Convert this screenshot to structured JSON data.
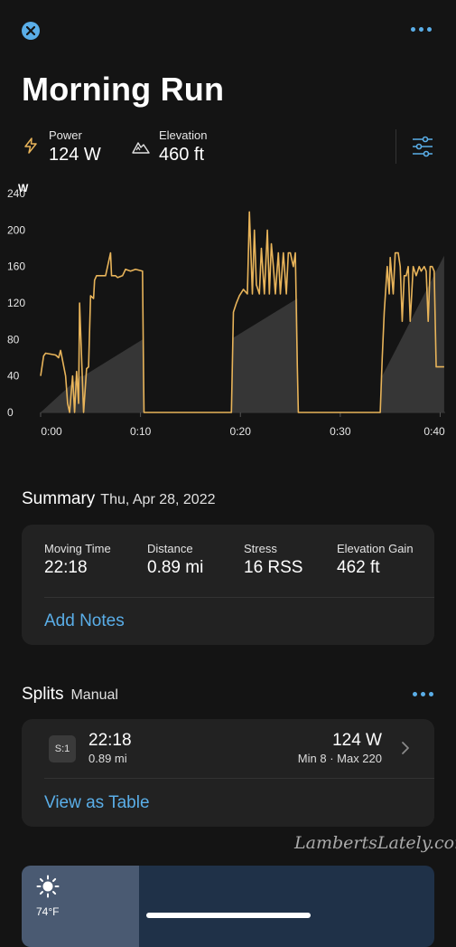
{
  "header": {
    "title": "Morning Run",
    "close_icon": "close-icon",
    "more_icon": "more-icon"
  },
  "metrics": {
    "power": {
      "label": "Power",
      "value": "124 W",
      "icon": "lightning-icon"
    },
    "elevation": {
      "label": "Elevation",
      "value": "460 ft",
      "icon": "mountain-icon"
    },
    "settings_icon": "sliders-icon"
  },
  "chart_data": {
    "type": "line",
    "ylabel": "W",
    "yticks": [
      "240",
      "200",
      "160",
      "120",
      "80",
      "40",
      "0"
    ],
    "ylim": [
      0,
      250
    ],
    "xticks": [
      "0:00",
      "0:10",
      "0:20",
      "0:30",
      "0:40"
    ],
    "xlim": [
      0,
      40.5
    ],
    "series": [
      {
        "color": "#e8b45a",
        "x": [
          0,
          0.3,
          0.5,
          1.5,
          1.8,
          2.0,
          2.5,
          2.7,
          2.9,
          3.2,
          3.4,
          3.6,
          3.8,
          3.9,
          4.1,
          4.3,
          4.6,
          4.8,
          5.0,
          5.3,
          5.4,
          5.6,
          6.0,
          6.5,
          7.0,
          7.1,
          7.3,
          7.5,
          7.7,
          8.2,
          8.5,
          9.0,
          9.5,
          10.2,
          10.3,
          10.35,
          19.1,
          19.3,
          19.6,
          19.9,
          20.3,
          20.7,
          20.9,
          21.2,
          21.4,
          21.6,
          21.9,
          22.1,
          22.4,
          22.7,
          22.9,
          23.1,
          23.3,
          23.5,
          23.8,
          24.0,
          24.3,
          24.6,
          24.8,
          25.0,
          25.3,
          25.5,
          25.7,
          25.8,
          34.0,
          34.2,
          34.4,
          34.7,
          34.9,
          35.0,
          35.3,
          35.5,
          35.8,
          36.0,
          36.2,
          36.4,
          36.6,
          36.8,
          37.0,
          37.3,
          37.6,
          37.9,
          38.1,
          38.4,
          38.6,
          38.8,
          39.0,
          39.2,
          39.4,
          39.6,
          39.8,
          40.1,
          40.4
        ],
        "y": [
          40,
          62,
          65,
          63,
          60,
          68,
          40,
          10,
          0,
          40,
          0,
          45,
          10,
          120,
          60,
          0,
          48,
          50,
          128,
          125,
          145,
          150,
          150,
          150,
          175,
          150,
          150,
          150,
          148,
          150,
          157,
          155,
          157,
          155,
          45,
          0,
          0,
          110,
          120,
          128,
          135,
          130,
          220,
          130,
          200,
          140,
          130,
          180,
          130,
          200,
          130,
          185,
          160,
          130,
          175,
          130,
          175,
          130,
          175,
          175,
          160,
          175,
          50,
          0,
          0,
          60,
          110,
          160,
          130,
          170,
          130,
          175,
          175,
          160,
          100,
          150,
          150,
          160,
          100,
          160,
          150,
          160,
          155,
          160,
          155,
          100,
          160,
          160,
          155,
          50,
          50,
          50,
          50
        ]
      },
      {
        "name": "Elevation",
        "color": "#3c3c3c",
        "x": [
          0,
          4.0,
          4.3,
          10.2,
          10.35,
          19.1,
          19.3,
          25.7,
          25.8,
          34.0,
          34.2,
          40.4
        ],
        "y": [
          0,
          40,
          40,
          80,
          0,
          0,
          82,
          125,
          0,
          0,
          40,
          172
        ]
      }
    ]
  },
  "summary": {
    "title": "Summary",
    "date": "Thu, Apr 28, 2022",
    "items": [
      {
        "label": "Moving Time",
        "value": "22:18"
      },
      {
        "label": "Distance",
        "value": "0.89 mi"
      },
      {
        "label": "Stress",
        "value": "16 RSS"
      },
      {
        "label": "Elevation Gain",
        "value": "462 ft"
      }
    ],
    "add_notes": "Add Notes"
  },
  "splits": {
    "title": "Splits",
    "mode": "Manual",
    "more_icon": "more-icon",
    "rows": [
      {
        "badge": "S:1",
        "time": "22:18",
        "distance": "0.89 mi",
        "power": "124 W",
        "range": "Min 8 · Max 220"
      }
    ],
    "view_table": "View as Table"
  },
  "weather": {
    "icon": "sun-icon",
    "temp": "74°F"
  },
  "watermark": "LambertsLately.com"
}
